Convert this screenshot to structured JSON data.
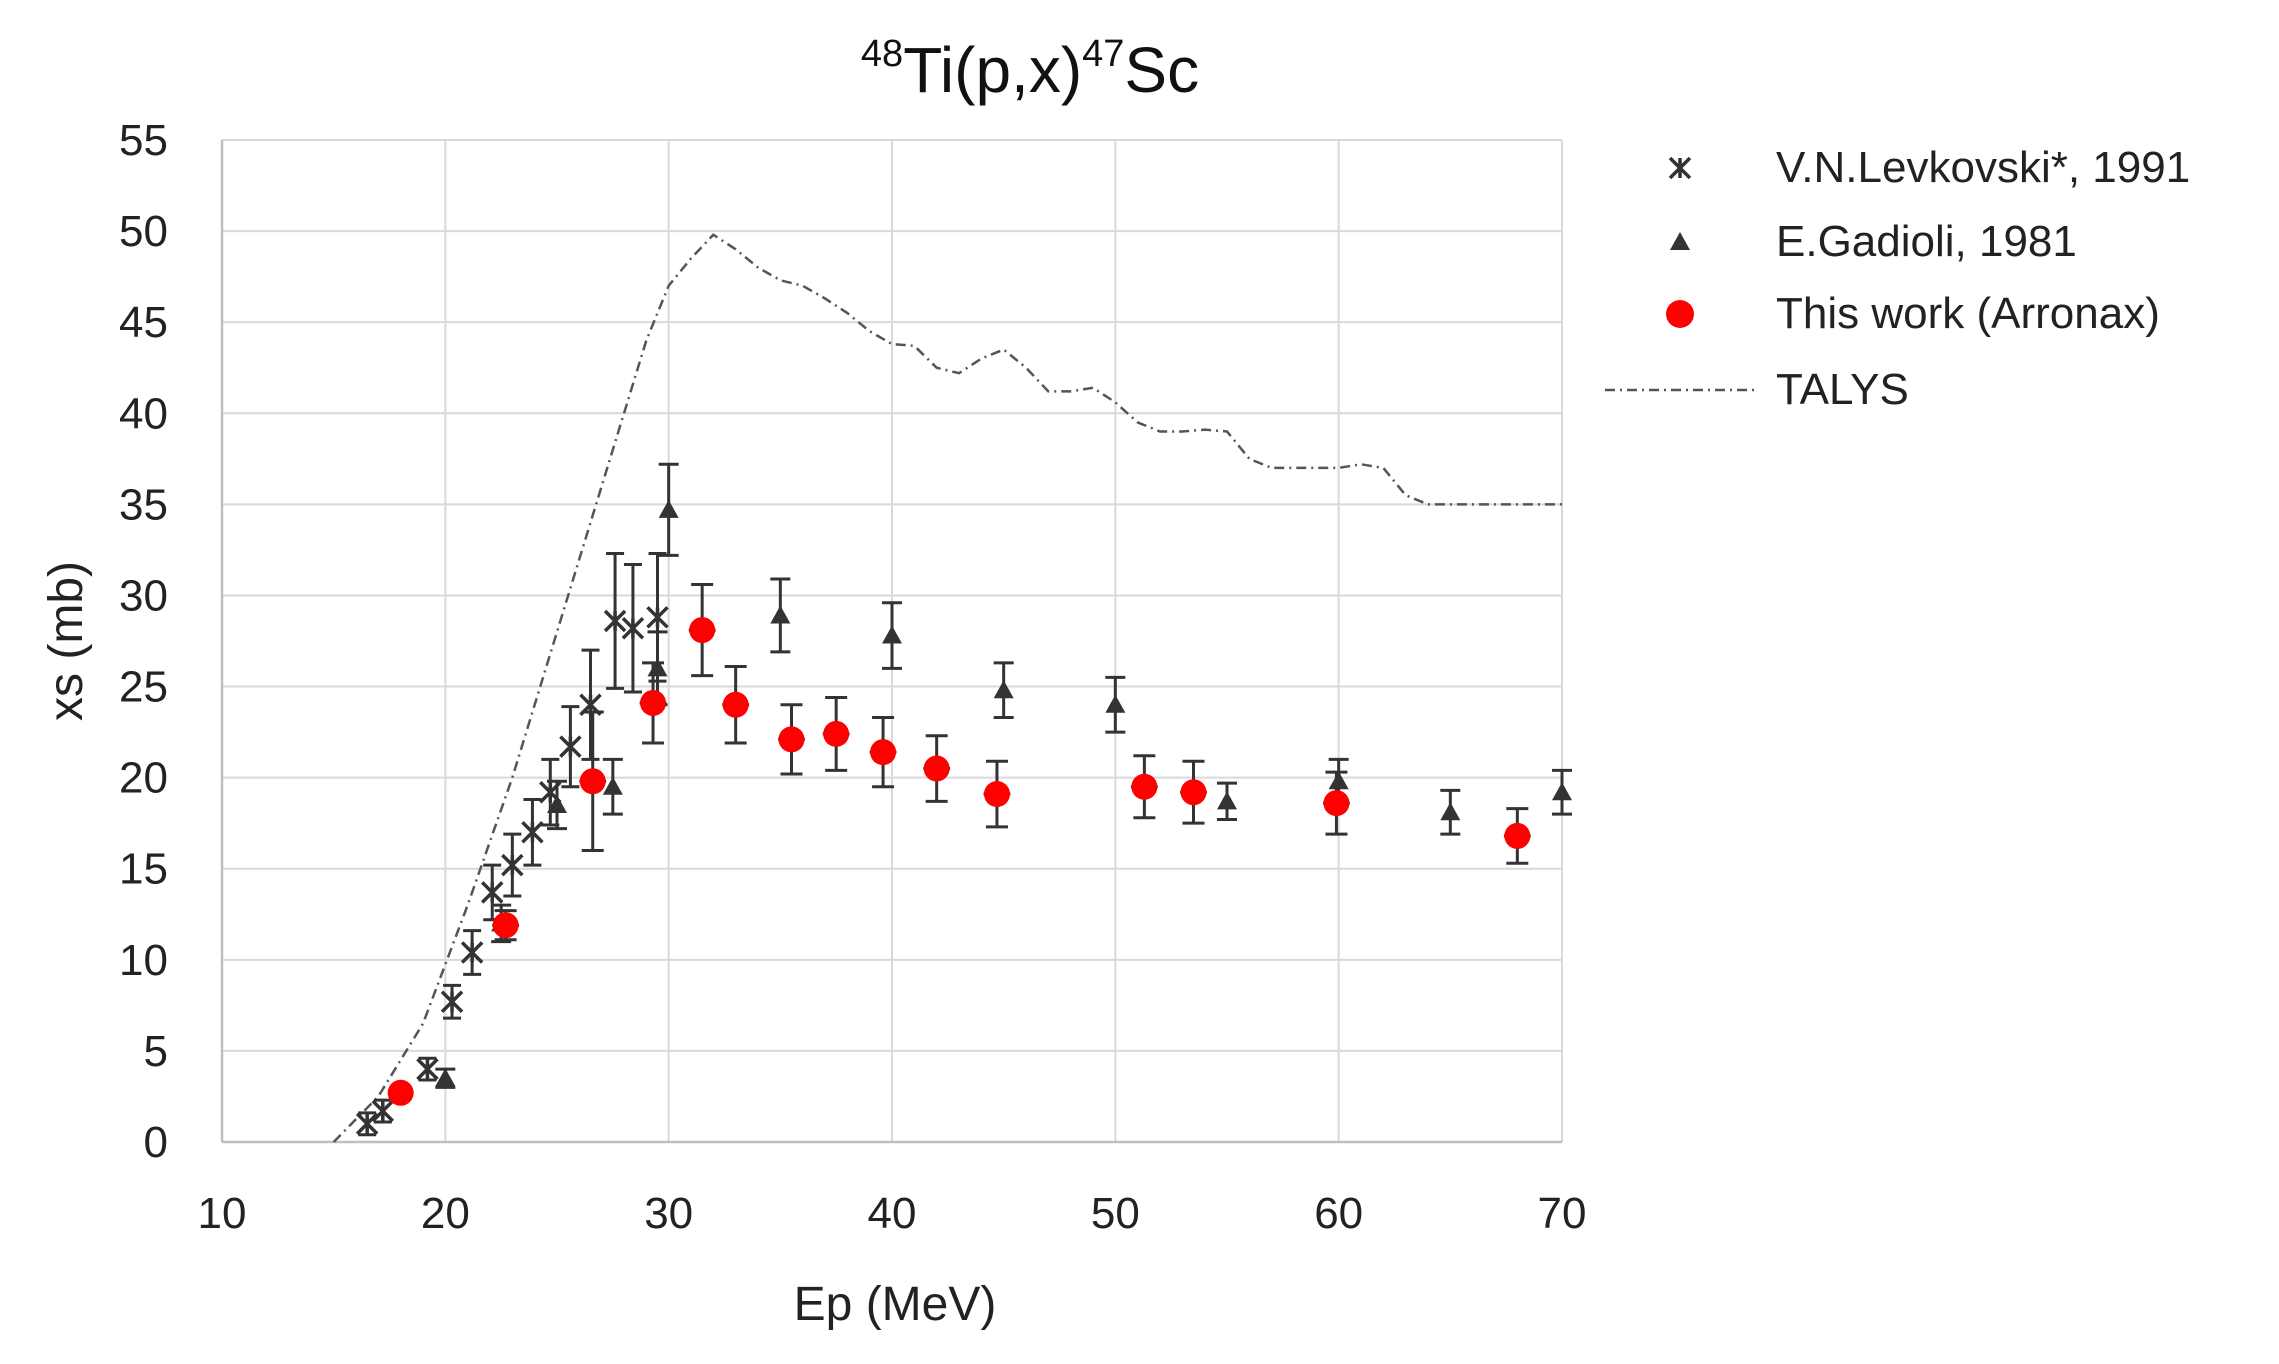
{
  "chart_data": {
    "type": "scatter",
    "title": {
      "pre_sup": "48",
      "main1": "Ti(p,x)",
      "mid_sup": "47",
      "main2": "Sc"
    },
    "xlabel": "Ep (MeV)",
    "ylabel": "xs (mb)",
    "xlim": [
      10,
      70
    ],
    "ylim": [
      0,
      55
    ],
    "xticks": [
      10,
      20,
      30,
      40,
      50,
      60,
      70
    ],
    "yticks": [
      0,
      5,
      10,
      15,
      20,
      25,
      30,
      35,
      40,
      45,
      50,
      55
    ],
    "grid": true,
    "legend_position": "top-right",
    "colors": {
      "levkovski": "#333333",
      "gadioli": "#333333",
      "arronax": "#ff0000",
      "talys": "#555555"
    },
    "series": [
      {
        "name": "V.N.Levkovski*, 1991",
        "marker": "asterisk",
        "points": [
          {
            "x": 16.5,
            "y": 1.0,
            "err": 0.6
          },
          {
            "x": 17.2,
            "y": 1.7,
            "err": 0.6
          },
          {
            "x": 19.2,
            "y": 4.0,
            "err": 0.6
          },
          {
            "x": 20.3,
            "y": 7.7,
            "err": 0.9
          },
          {
            "x": 21.2,
            "y": 10.4,
            "err": 1.2
          },
          {
            "x": 22.1,
            "y": 13.7,
            "err": 1.5
          },
          {
            "x": 23.0,
            "y": 15.2,
            "err": 1.7
          },
          {
            "x": 23.9,
            "y": 17.0,
            "err": 1.8
          },
          {
            "x": 24.7,
            "y": 19.2,
            "err": 1.8
          },
          {
            "x": 25.6,
            "y": 21.7,
            "err": 2.2
          },
          {
            "x": 26.5,
            "y": 24.0,
            "err": 3.0
          },
          {
            "x": 27.6,
            "y": 28.6,
            "err": 3.7
          },
          {
            "x": 28.4,
            "y": 28.2,
            "err": 3.5
          },
          {
            "x": 29.5,
            "y": 28.8,
            "err": 3.5
          }
        ]
      },
      {
        "name": "E.Gadioli, 1981",
        "marker": "triangle",
        "points": [
          {
            "x": 20.0,
            "y": 3.5,
            "err": 0.5
          },
          {
            "x": 22.5,
            "y": 12.0,
            "err": 1.0
          },
          {
            "x": 25.0,
            "y": 18.5,
            "err": 1.3
          },
          {
            "x": 27.5,
            "y": 19.5,
            "err": 1.5
          },
          {
            "x": 29.5,
            "y": 26.0,
            "err": 2.0
          },
          {
            "x": 30.0,
            "y": 34.7,
            "err": 2.5
          },
          {
            "x": 35.0,
            "y": 28.9,
            "err": 2.0
          },
          {
            "x": 40.0,
            "y": 27.8,
            "err": 1.8
          },
          {
            "x": 45.0,
            "y": 24.8,
            "err": 1.5
          },
          {
            "x": 50.0,
            "y": 24.0,
            "err": 1.5
          },
          {
            "x": 55.0,
            "y": 18.7,
            "err": 1.0
          },
          {
            "x": 60.0,
            "y": 19.8,
            "err": 1.2
          },
          {
            "x": 65.0,
            "y": 18.1,
            "err": 1.2
          },
          {
            "x": 70.0,
            "y": 19.2,
            "err": 1.2
          }
        ]
      },
      {
        "name": "This work (Arronax)",
        "marker": "circle",
        "points": [
          {
            "x": 18.0,
            "y": 2.7,
            "err": 0.3,
            "xerr": 0.3
          },
          {
            "x": 22.7,
            "y": 11.9,
            "err": 0.8,
            "xerr": 0.6
          },
          {
            "x": 26.6,
            "y": 19.8,
            "err": 3.8,
            "xerr": 0.6
          },
          {
            "x": 29.3,
            "y": 24.1,
            "err": 2.2,
            "xerr": 0.6
          },
          {
            "x": 31.5,
            "y": 28.1,
            "err": 2.5,
            "xerr": 0.6
          },
          {
            "x": 33.0,
            "y": 24.0,
            "err": 2.1,
            "xerr": 0.6
          },
          {
            "x": 35.5,
            "y": 22.1,
            "err": 1.9,
            "xerr": 0.6
          },
          {
            "x": 37.5,
            "y": 22.4,
            "err": 2.0,
            "xerr": 0.6
          },
          {
            "x": 39.6,
            "y": 21.4,
            "err": 1.9,
            "xerr": 0.6
          },
          {
            "x": 42.0,
            "y": 20.5,
            "err": 1.8,
            "xerr": 0.6
          },
          {
            "x": 44.7,
            "y": 19.1,
            "err": 1.8,
            "xerr": 0.6
          },
          {
            "x": 51.3,
            "y": 19.5,
            "err": 1.7,
            "xerr": 0.6
          },
          {
            "x": 53.5,
            "y": 19.2,
            "err": 1.7,
            "xerr": 0.6
          },
          {
            "x": 59.9,
            "y": 18.6,
            "err": 1.7,
            "xerr": 0.6
          },
          {
            "x": 68.0,
            "y": 16.8,
            "err": 1.5,
            "xerr": 0.6
          }
        ]
      },
      {
        "name": "TALYS",
        "marker": "dashdot-line",
        "x": [
          15,
          17,
          19,
          21,
          23,
          25,
          27,
          29,
          30,
          31,
          32,
          33,
          34,
          35,
          36,
          37,
          38,
          39,
          40,
          41,
          42,
          43,
          44,
          45,
          46,
          47,
          48,
          49,
          50,
          51,
          52,
          53,
          54,
          55,
          56,
          57,
          58,
          59,
          60,
          61,
          62,
          63,
          64,
          65,
          66,
          67,
          68,
          69,
          70
        ],
        "y": [
          0,
          2.5,
          6.5,
          13,
          20,
          28,
          36,
          44,
          47,
          48.5,
          49.8,
          49,
          48,
          47.3,
          47,
          46.3,
          45.5,
          44.5,
          43.8,
          43.7,
          42.5,
          42.2,
          43,
          43.5,
          42.5,
          41.2,
          41.2,
          41.4,
          40.6,
          39.5,
          39,
          39,
          39.1,
          39,
          37.5,
          37,
          37,
          37,
          37,
          37.2,
          37,
          35.5,
          35,
          35,
          35,
          35,
          35,
          35,
          35
        ]
      }
    ]
  }
}
